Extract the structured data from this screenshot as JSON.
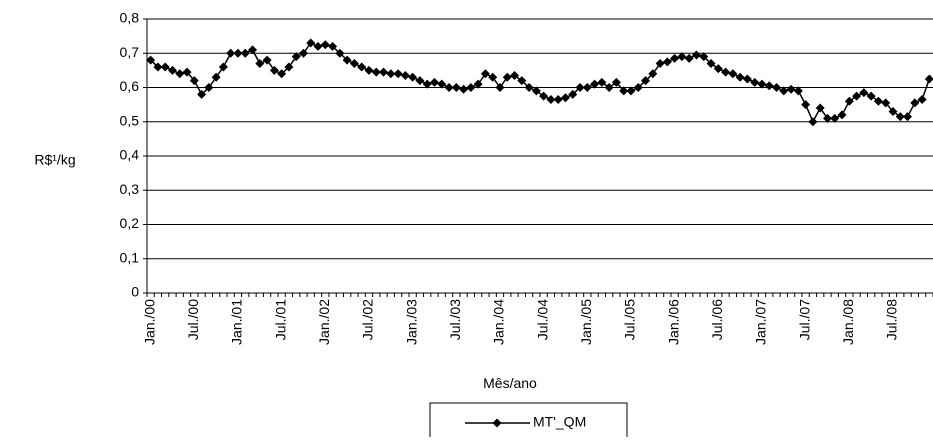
{
  "chart_data": {
    "type": "line",
    "y_label": "R$¹/kg",
    "x_label": "Mês/ano",
    "categories": [
      "Jan./00",
      null,
      null,
      null,
      null,
      null,
      "Jul./00",
      null,
      null,
      null,
      null,
      null,
      "Jan./01",
      null,
      null,
      null,
      null,
      null,
      "Jul./01",
      null,
      null,
      null,
      null,
      null,
      "Jan./02",
      null,
      null,
      null,
      null,
      null,
      "Jul./02",
      null,
      null,
      null,
      null,
      null,
      "Jan./03",
      null,
      null,
      null,
      null,
      null,
      "Jul./03",
      null,
      null,
      null,
      null,
      null,
      "Jan./04",
      null,
      null,
      null,
      null,
      null,
      "Jul./04",
      null,
      null,
      null,
      null,
      null,
      "Jan./05",
      null,
      null,
      null,
      null,
      null,
      "Jul./05",
      null,
      null,
      null,
      null,
      null,
      "Jan./06",
      null,
      null,
      null,
      null,
      null,
      "Jul./06",
      null,
      null,
      null,
      null,
      null,
      "Jan./07",
      null,
      null,
      null,
      null,
      null,
      "Jul./07",
      null,
      null,
      null,
      null,
      null,
      "Jan./08",
      null,
      null,
      null,
      null,
      null,
      "Jul./08",
      null,
      null,
      null,
      null,
      null
    ],
    "series": [
      {
        "name": "MT'_QM",
        "color": "#000000",
        "values": [
          0.68,
          0.66,
          0.66,
          0.65,
          0.64,
          0.645,
          0.62,
          0.58,
          0.6,
          0.63,
          0.66,
          0.7,
          0.7,
          0.7,
          0.71,
          0.67,
          0.68,
          0.65,
          0.64,
          0.66,
          0.69,
          0.7,
          0.73,
          0.72,
          0.725,
          0.72,
          0.7,
          0.68,
          0.67,
          0.66,
          0.65,
          0.645,
          0.645,
          0.64,
          0.64,
          0.635,
          0.63,
          0.62,
          0.61,
          0.615,
          0.61,
          0.6,
          0.6,
          0.595,
          0.6,
          0.61,
          0.64,
          0.63,
          0.6,
          0.63,
          0.635,
          0.62,
          0.6,
          0.59,
          0.575,
          0.565,
          0.565,
          0.57,
          0.58,
          0.6,
          0.6,
          0.61,
          0.615,
          0.6,
          0.615,
          0.59,
          0.59,
          0.6,
          0.62,
          0.64,
          0.67,
          0.675,
          0.685,
          0.69,
          0.685,
          0.695,
          0.69,
          0.67,
          0.655,
          0.645,
          0.64,
          0.63,
          0.625,
          0.615,
          0.61,
          0.605,
          0.6,
          0.59,
          0.595,
          0.59,
          0.55,
          0.5,
          0.54,
          0.51,
          0.51,
          0.52,
          0.56,
          0.575,
          0.585,
          0.575,
          0.56,
          0.555,
          0.53,
          0.515,
          0.515,
          0.555,
          0.565,
          0.625
        ]
      }
    ],
    "ylim": [
      0,
      0.8
    ],
    "yticks": [
      0,
      {
        "value": 0.1,
        "label": "0,1"
      },
      {
        "value": 0.2,
        "label": "0,2"
      },
      {
        "value": 0.3,
        "label": "0,3"
      },
      {
        "value": 0.4,
        "label": "0,4"
      },
      {
        "value": 0.5,
        "label": "0,5"
      },
      {
        "value": 0.6,
        "label": "0,6"
      },
      {
        "value": 0.7,
        "label": "0,7"
      },
      {
        "value": 0.8,
        "label": "0,8"
      }
    ],
    "grid": true,
    "legend": "bottom"
  }
}
